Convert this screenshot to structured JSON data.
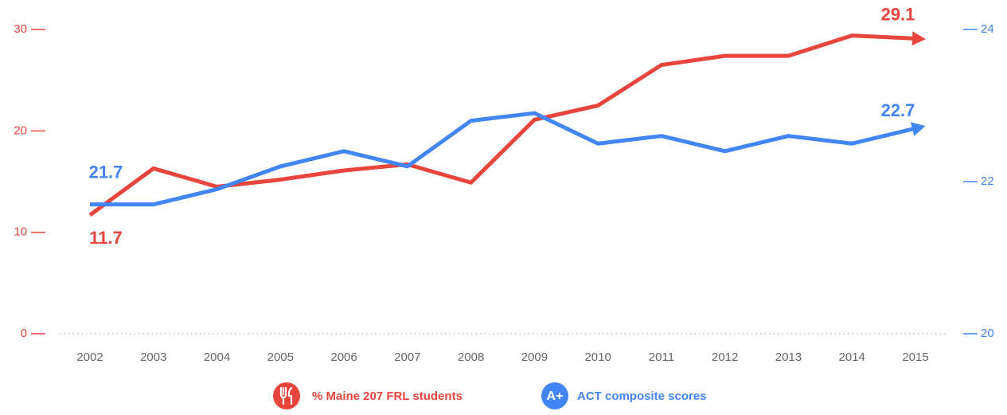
{
  "chart_data": {
    "type": "line",
    "categories": [
      "2002",
      "2003",
      "2004",
      "2005",
      "2006",
      "2007",
      "2008",
      "2009",
      "2010",
      "2011",
      "2012",
      "2013",
      "2014",
      "2015"
    ],
    "series": [
      {
        "name": "% Maine 207 FRL students",
        "color": "#e8453c",
        "axis": "y",
        "values": [
          11.7,
          16.3,
          14.5,
          15.2,
          16.1,
          16.7,
          14.9,
          21.1,
          22.5,
          26.5,
          27.4,
          27.4,
          29.4,
          29.1
        ]
      },
      {
        "name": "ACT composite scores",
        "color": "#4285f4",
        "axis": "y2",
        "icon_text": "A+",
        "values": [
          21.7,
          21.7,
          21.9,
          22.2,
          22.4,
          22.2,
          22.8,
          22.9,
          22.5,
          22.6,
          22.4,
          22.6,
          22.5,
          22.7
        ]
      }
    ],
    "ylim": [
      0,
      30
    ],
    "yticks": [
      0,
      10,
      20,
      30
    ],
    "y2lim": [
      20,
      24
    ],
    "y2ticks": [
      20,
      22,
      24
    ]
  }
}
